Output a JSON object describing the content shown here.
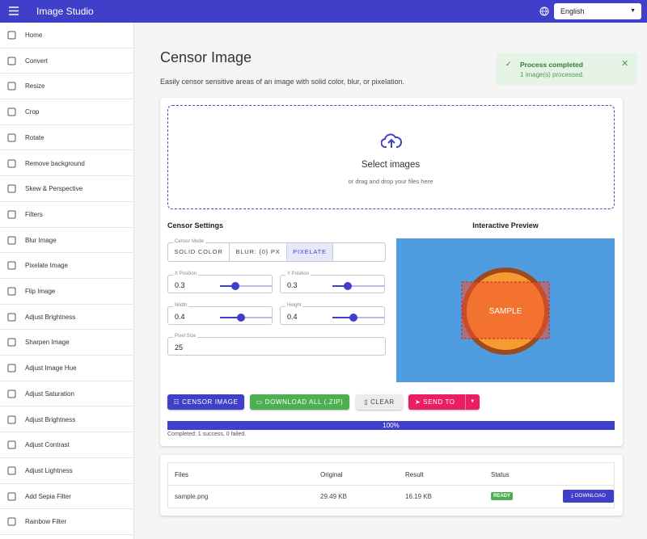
{
  "header": {
    "title": "Image Studio",
    "language": "English"
  },
  "sidebar": {
    "items": [
      "Home",
      "Convert",
      "Resize",
      "Crop",
      "Rotate",
      "Remove background",
      "Skew & Perspective",
      "Filters",
      "Blur Image",
      "Pixelate Image",
      "Flip Image",
      "Adjust Brightness",
      "Sharpen Image",
      "Adjust Image Hue",
      "Adjust Saturation",
      "Adjust Brightness",
      "Adjust Contrast",
      "Adjust Lightness",
      "Add Sepia Filter",
      "Rainbow Filter"
    ]
  },
  "main": {
    "title": "Censor Image",
    "description": "Easily censor sensitive areas of an image with solid color, blur, or pixelation."
  },
  "toast": {
    "title": "Process completed",
    "message": "1 image(s) processed."
  },
  "dropzone": {
    "title": "Select images",
    "subtitle": "or drag and drop your files here"
  },
  "settings": {
    "title": "Censor Settings",
    "mode_label": "Censor Mode",
    "modes": [
      "SOLID COLOR",
      "BLUR: {0} PX",
      "PIXELATE"
    ],
    "fields": [
      {
        "label": "X Position",
        "value": 0.3
      },
      {
        "label": "Y Position",
        "value": 0.3
      },
      {
        "label": "Width",
        "value": 0.4
      },
      {
        "label": "Height",
        "value": 0.4
      }
    ],
    "pixel_size": {
      "label": "Pixel Size",
      "value": 25
    }
  },
  "preview": {
    "title": "Interactive Preview",
    "sample": "SAMPLE"
  },
  "buttons": [
    "CENSOR IMAGE",
    "DOWNLOAD ALL (.ZIP)",
    "CLEAR",
    "SEND TO"
  ],
  "progress": {
    "label": "100%",
    "status": "Completed: 1 success, 0 failed."
  },
  "table": {
    "headers": [
      "Files",
      "Original",
      "Result",
      "Status"
    ],
    "rows": [
      [
        "sample.png",
        "29.49 KB",
        "16.19 KB",
        "READY",
        "DOWNLOAD"
      ]
    ]
  }
}
